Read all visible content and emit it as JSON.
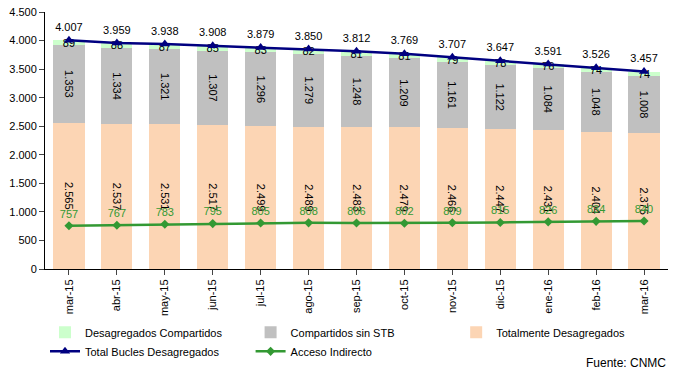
{
  "chart_data": {
    "type": "bar",
    "stacked": true,
    "data_labels": true,
    "grid": false,
    "legend": "bottom",
    "source": "Fuente: CNMC",
    "categories": [
      "mar-15",
      "abr-15",
      "may-15",
      "jun-15",
      "jul-15",
      "ago-15",
      "sep-15",
      "oct-15",
      "nov-15",
      "dic-15",
      "ene-16",
      "feb-16",
      "mar-16"
    ],
    "ylim": [
      0,
      4500
    ],
    "yticks": [
      0,
      500,
      {
        "value": 1000,
        "label": "1.000"
      },
      {
        "value": 1500,
        "label": "1.500"
      },
      {
        "value": 2000,
        "label": "2.000"
      },
      {
        "value": 2500,
        "label": "2.500"
      },
      {
        "value": 3000,
        "label": "3.000"
      },
      {
        "value": 3500,
        "label": "3.500"
      },
      {
        "value": 4000,
        "label": "4.000"
      },
      {
        "value": 4500,
        "label": "4.500"
      }
    ],
    "series": [
      {
        "name": "Desagregados Compartidos",
        "type": "bar",
        "color": "#ccffcc",
        "values": [
          89,
          88,
          87,
          85,
          83,
          82,
          81,
          81,
          79,
          78,
          76,
          74,
          74
        ]
      },
      {
        "name": "Compartidos sin STB",
        "type": "bar",
        "color": "#c0c0c0",
        "values": [
          1353,
          1334,
          1321,
          1307,
          1296,
          1279,
          1248,
          1209,
          1161,
          1122,
          1084,
          1048,
          1008
        ],
        "value_labels": [
          "1.353",
          "1.334",
          "1.321",
          "1.307",
          "1.296",
          "1.279",
          "1.248",
          "1.209",
          "1.161",
          "1.122",
          "1.084",
          "1.048",
          "1.008"
        ]
      },
      {
        "name": "Totalmente Desagregados",
        "type": "bar",
        "color": "#fcd5b4",
        "values": [
          2565,
          2537,
          2531,
          2517,
          2499,
          2489,
          2483,
          2479,
          2466,
          2447,
          2431,
          2404,
          2375
        ],
        "value_labels": [
          "2.565",
          "2.537",
          "2.531",
          "2.517",
          "2.499",
          "2.489",
          "2.483",
          "2.479",
          "2.466",
          "2.447",
          "2.431",
          "2.404",
          "2.375"
        ]
      },
      {
        "name": "Total Bucles Desagregados",
        "type": "line",
        "color": "#000080",
        "marker": "triangle-up",
        "line_style": "solid",
        "values": [
          4007,
          3959,
          3938,
          3908,
          3879,
          3850,
          3812,
          3769,
          3707,
          3647,
          3591,
          3526,
          3457
        ],
        "value_labels": [
          "4.007",
          "3.959",
          "3.938",
          "3.908",
          "3.879",
          "3.850",
          "3.812",
          "3.769",
          "3.707",
          "3.647",
          "3.591",
          "3.526",
          "3.457"
        ]
      },
      {
        "name": "Acceso Indirecto",
        "type": "line",
        "color": "#339933",
        "marker": "diamond",
        "line_style": "solid",
        "values": [
          757,
          767,
          783,
          795,
          805,
          808,
          806,
          802,
          809,
          815,
          826,
          834,
          840
        ]
      }
    ]
  }
}
